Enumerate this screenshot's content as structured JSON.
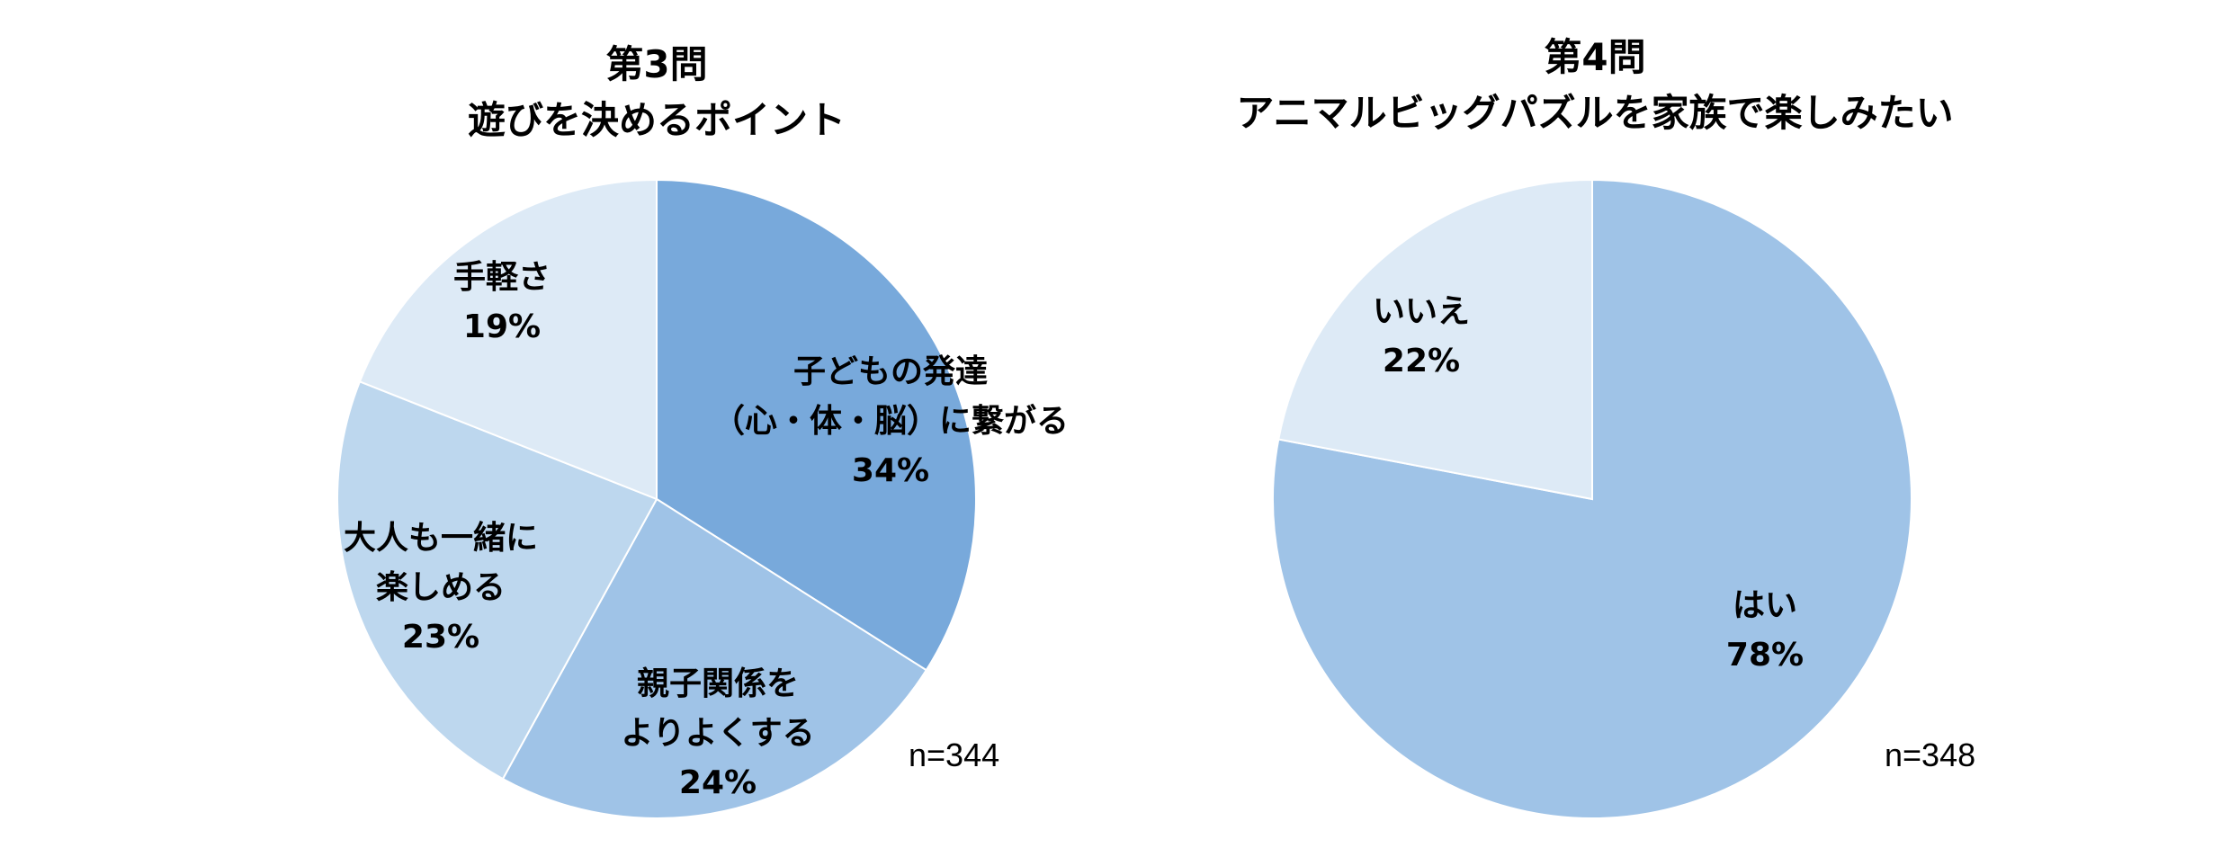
{
  "chart_data": [
    {
      "type": "pie",
      "title": [
        "第3問",
        "遊びを決めるポイント"
      ],
      "n_label": "n=344",
      "slices": [
        {
          "label": [
            "子どもの発達",
            "（心・体・脳）に繋がる"
          ],
          "value": 34,
          "value_label": "34%",
          "color": "#78a9db"
        },
        {
          "label": [
            "親子関係を",
            "よりよくする"
          ],
          "value": 24,
          "value_label": "24%",
          "color": "#9fc3e7"
        },
        {
          "label": [
            "大人も一緒に",
            "楽しめる"
          ],
          "value": 23,
          "value_label": "23%",
          "color": "#bdd7ee"
        },
        {
          "label": [
            "手軽さ"
          ],
          "value": 19,
          "value_label": "19%",
          "color": "#ddeaf6"
        }
      ]
    },
    {
      "type": "pie",
      "title": [
        "第4問",
        "アニマルビッグパズルを家族で楽しみたい"
      ],
      "n_label": "n=348",
      "slices": [
        {
          "label": [
            "はい"
          ],
          "value": 78,
          "value_label": "78%",
          "color": "#9fc3e7"
        },
        {
          "label": [
            "いいえ"
          ],
          "value": 22,
          "value_label": "22%",
          "color": "#ddeaf6"
        }
      ]
    }
  ]
}
